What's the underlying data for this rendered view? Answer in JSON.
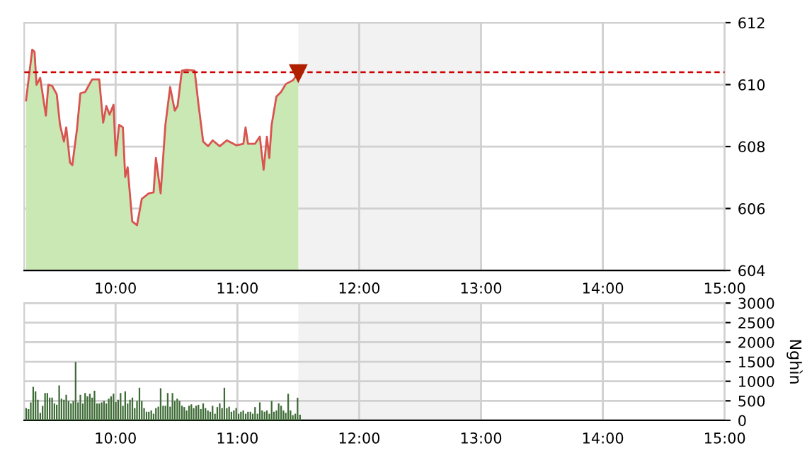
{
  "chart_data": [
    {
      "type": "area",
      "grid": true,
      "xlim": [
        9.25,
        15
      ],
      "xticks": [
        {
          "value": 10,
          "label": "10:00"
        },
        {
          "value": 11,
          "label": "11:00"
        },
        {
          "value": 12,
          "label": "12:00"
        },
        {
          "value": 13,
          "label": "13:00"
        },
        {
          "value": 14,
          "label": "14:00"
        },
        {
          "value": 15,
          "label": "15:00"
        }
      ],
      "ylim": [
        604,
        612
      ],
      "yticks": [
        604,
        606,
        608,
        610,
        612
      ],
      "ref_lines": [
        {
          "axis": "y",
          "value": 610.4,
          "color": "#cc0000",
          "line_style": "dashed"
        }
      ],
      "bands": [
        {
          "axis": "x",
          "from": 11.5,
          "to": 13,
          "color": "#f2f2f2"
        }
      ],
      "series": [
        {
          "color": "#c9e8b4",
          "x": [
            9.265,
            9.316,
            9.335,
            9.351,
            9.381,
            9.428,
            9.448,
            9.479,
            9.517,
            9.544,
            9.576,
            9.595,
            9.626,
            9.645,
            9.684,
            9.711,
            9.75,
            9.808,
            9.866,
            9.898,
            9.924,
            9.951,
            9.983,
            10.002,
            10.029,
            10.06,
            10.079,
            10.099,
            10.137,
            10.176,
            10.215,
            10.273,
            10.312,
            10.331,
            10.37,
            10.409,
            10.448,
            10.486,
            10.509,
            10.544,
            10.584,
            10.649,
            10.68,
            10.719,
            10.759,
            10.797,
            10.855,
            10.913,
            10.991,
            11.049,
            11.067,
            11.087,
            11.145,
            11.184,
            11.215,
            11.242,
            11.262,
            11.281,
            11.32,
            11.358,
            11.398,
            11.456,
            11.5
          ],
          "values": [
            609.49,
            611.13,
            611.05,
            609.99,
            610.22,
            609.0,
            609.99,
            609.96,
            609.69,
            608.7,
            608.16,
            608.62,
            607.48,
            607.4,
            608.59,
            609.72,
            609.76,
            610.17,
            610.17,
            608.77,
            609.31,
            609.03,
            609.35,
            607.71,
            608.7,
            608.62,
            607.02,
            607.33,
            605.58,
            605.46,
            606.31,
            606.49,
            606.52,
            607.63,
            606.49,
            608.7,
            609.92,
            609.16,
            609.31,
            610.45,
            610.48,
            610.45,
            609.38,
            608.16,
            608.01,
            608.2,
            608.01,
            608.2,
            608.04,
            608.09,
            608.62,
            608.09,
            608.09,
            608.32,
            607.25,
            608.32,
            607.63,
            608.7,
            609.61,
            609.76,
            610.02,
            610.14,
            610.37
          ]
        },
        {
          "type": "line",
          "color": "#d9534f",
          "x": [
            9.265,
            9.316,
            9.335,
            9.351,
            9.381,
            9.428,
            9.448,
            9.479,
            9.517,
            9.544,
            9.576,
            9.595,
            9.626,
            9.645,
            9.684,
            9.711,
            9.75,
            9.808,
            9.866,
            9.898,
            9.924,
            9.951,
            9.983,
            10.002,
            10.029,
            10.06,
            10.079,
            10.099,
            10.137,
            10.176,
            10.215,
            10.273,
            10.312,
            10.331,
            10.37,
            10.409,
            10.448,
            10.486,
            10.509,
            10.544,
            10.584,
            10.649,
            10.68,
            10.719,
            10.759,
            10.797,
            10.855,
            10.913,
            10.991,
            11.049,
            11.067,
            11.087,
            11.145,
            11.184,
            11.215,
            11.242,
            11.262,
            11.281,
            11.32,
            11.358,
            11.398,
            11.456,
            11.5
          ],
          "values": [
            609.49,
            611.13,
            611.05,
            609.99,
            610.22,
            609.0,
            609.99,
            609.96,
            609.69,
            608.7,
            608.16,
            608.62,
            607.48,
            607.4,
            608.59,
            609.72,
            609.76,
            610.17,
            610.17,
            608.77,
            609.31,
            609.03,
            609.35,
            607.71,
            608.7,
            608.62,
            607.02,
            607.33,
            605.58,
            605.46,
            606.31,
            606.49,
            606.52,
            607.63,
            606.49,
            608.7,
            609.92,
            609.16,
            609.31,
            610.45,
            610.48,
            610.45,
            609.38,
            608.16,
            608.01,
            608.2,
            608.01,
            608.2,
            608.04,
            608.09,
            608.62,
            608.09,
            608.09,
            608.32,
            607.25,
            608.32,
            607.63,
            608.7,
            609.61,
            609.76,
            610.02,
            610.14,
            610.37
          ]
        }
      ]
    },
    {
      "type": "bar",
      "grid": true,
      "ylabel": "Nghìn",
      "xlim": [
        9.25,
        15
      ],
      "xticks": [
        {
          "value": 10,
          "label": "10:00"
        },
        {
          "value": 11,
          "label": "11:00"
        },
        {
          "value": 12,
          "label": "12:00"
        },
        {
          "value": 13,
          "label": "13:00"
        },
        {
          "value": 14,
          "label": "14:00"
        },
        {
          "value": 15,
          "label": "15:00"
        }
      ],
      "ylim": [
        0,
        3000
      ],
      "yticks": [
        0,
        500,
        1000,
        1500,
        2000,
        2500,
        3000
      ],
      "bands": [
        {
          "axis": "x",
          "from": 11.5,
          "to": 13,
          "color": "#f2f2f2"
        }
      ],
      "series": [
        {
          "color": "#3d6b35",
          "x": [
            9.266,
            9.285,
            9.304,
            9.324,
            9.343,
            9.362,
            9.382,
            9.401,
            9.421,
            9.44,
            9.459,
            9.479,
            9.498,
            9.517,
            9.537,
            9.556,
            9.576,
            9.595,
            9.614,
            9.634,
            9.653,
            9.672,
            9.692,
            9.711,
            9.731,
            9.75,
            9.769,
            9.789,
            9.808,
            9.827,
            9.847,
            9.866,
            9.886,
            9.905,
            9.924,
            9.944,
            9.963,
            9.983,
            10.002,
            10.021,
            10.041,
            10.06,
            10.079,
            10.099,
            10.118,
            10.138,
            10.157,
            10.176,
            10.196,
            10.215,
            10.234,
            10.254,
            10.273,
            10.293,
            10.312,
            10.331,
            10.351,
            10.37,
            10.39,
            10.409,
            10.428,
            10.448,
            10.467,
            10.486,
            10.506,
            10.525,
            10.545,
            10.564,
            10.583,
            10.603,
            10.622,
            10.641,
            10.661,
            10.68,
            10.7,
            10.719,
            10.738,
            10.758,
            10.777,
            10.796,
            10.816,
            10.835,
            10.855,
            10.874,
            10.893,
            10.913,
            10.932,
            10.951,
            10.971,
            10.99,
            11.01,
            11.029,
            11.048,
            11.068,
            11.087,
            11.107,
            11.126,
            11.145,
            11.165,
            11.184,
            11.203,
            11.223,
            11.242,
            11.262,
            11.281,
            11.3,
            11.32,
            11.339,
            11.359,
            11.378,
            11.397,
            11.417,
            11.436,
            11.455,
            11.475,
            11.494,
            11.514
          ],
          "values": [
            315,
            290,
            460,
            860,
            740,
            530,
            195,
            375,
            700,
            700,
            580,
            580,
            435,
            400,
            895,
            555,
            530,
            655,
            495,
            435,
            495,
            1490,
            460,
            655,
            435,
            700,
            615,
            680,
            580,
            760,
            435,
            435,
            460,
            495,
            435,
            555,
            615,
            680,
            470,
            530,
            700,
            375,
            740,
            435,
            530,
            580,
            315,
            495,
            835,
            495,
            315,
            220,
            220,
            255,
            170,
            315,
            350,
            820,
            375,
            375,
            700,
            350,
            700,
            495,
            555,
            495,
            375,
            340,
            255,
            375,
            410,
            315,
            375,
            400,
            290,
            435,
            315,
            255,
            220,
            375,
            170,
            340,
            435,
            315,
            835,
            315,
            350,
            220,
            255,
            315,
            170,
            220,
            255,
            170,
            220,
            220,
            170,
            340,
            170,
            460,
            255,
            220,
            255,
            170,
            495,
            220,
            255,
            435,
            375,
            255,
            195,
            680,
            255,
            135,
            170,
            580,
            145
          ]
        }
      ]
    }
  ]
}
